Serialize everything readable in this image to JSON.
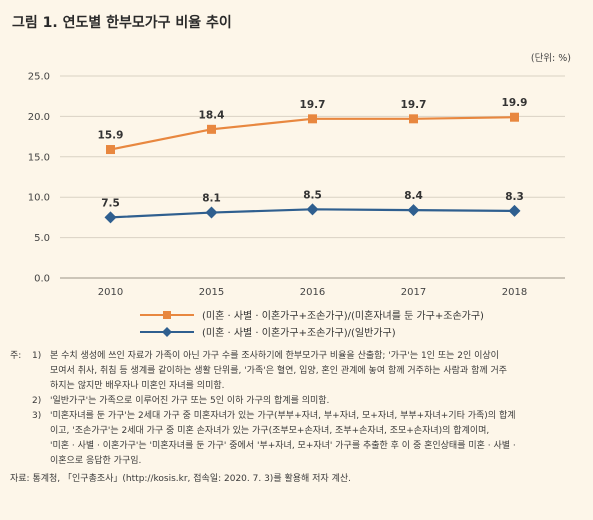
{
  "title": "그림 1.  연도별 한부모가구 비율 추이",
  "unit_label": "(단위: %)",
  "chart_data": {
    "type": "line",
    "categories": [
      "2010",
      "2015",
      "2016",
      "2017",
      "2018"
    ],
    "ylim": [
      0,
      25
    ],
    "yticks": [
      "0.0",
      "5.0",
      "10.0",
      "15.0",
      "20.0",
      "25.0"
    ],
    "grid": true,
    "series": [
      {
        "name": "(미혼 · 사별 · 이혼가구+조손가구)/(미혼자녀를 둔 가구+조손가구)",
        "values": [
          15.9,
          18.4,
          19.7,
          19.7,
          19.9
        ],
        "labels": [
          "15.9",
          "18.4",
          "19.7",
          "19.7",
          "19.9"
        ],
        "color": "#e8873f",
        "marker": "square"
      },
      {
        "name": "(미혼 · 사별 · 이혼가구+조손가구)/(일반가구)",
        "values": [
          7.5,
          8.1,
          8.5,
          8.4,
          8.3
        ],
        "labels": [
          "7.5",
          "8.1",
          "8.5",
          "8.4",
          "8.3"
        ],
        "color": "#2f5f8f",
        "marker": "diamond"
      }
    ]
  },
  "notes": {
    "prefix": "주:",
    "items": [
      {
        "num": "1)",
        "lines": [
          "본 수치 생성에 쓰인 자료가 가족이 아닌 가구 수를 조사하기에 한부모가구 비율을 산출함; '가구'는 1인 또는 2인 이상이",
          "모여서 취사, 취침 등 생계를 같이하는 생활 단위를, '가족'은 혈연, 입양, 혼인 관계에 놓여 함께 거주하는 사람과 함께 거주",
          "하지는 않지만 배우자나 미혼인 자녀를 의미함."
        ]
      },
      {
        "num": "2)",
        "lines": [
          "'일반가구'는 가족으로 이루어진 가구 또는 5인 이하 가구의 합계를 의미함."
        ]
      },
      {
        "num": "3)",
        "lines": [
          "'미혼자녀를 둔 가구'는 2세대 가구 중 미혼자녀가 있는 가구(부부+자녀, 부+자녀, 모+자녀, 부부+자녀+기타 가족)의 합계",
          "이고, '조손가구'는 2세대 가구 중 미혼 손자녀가 있는 가구(조부모+손자녀, 조부+손자녀, 조모+손자녀)의 합계이며,",
          "'미혼 · 사별 · 이혼가구'는 '미혼자녀를 둔 가구' 중에서 '부+자녀, 모+자녀' 가구를 추출한 후 이 중 혼인상태를 미혼 · 사별 ·",
          "이혼으로 응답한 가구임."
        ]
      }
    ]
  },
  "source": "자료: 통계청, 「인구총조사」(http://kosis.kr, 접속일: 2020. 7. 3)를 활용해 저자 계산."
}
